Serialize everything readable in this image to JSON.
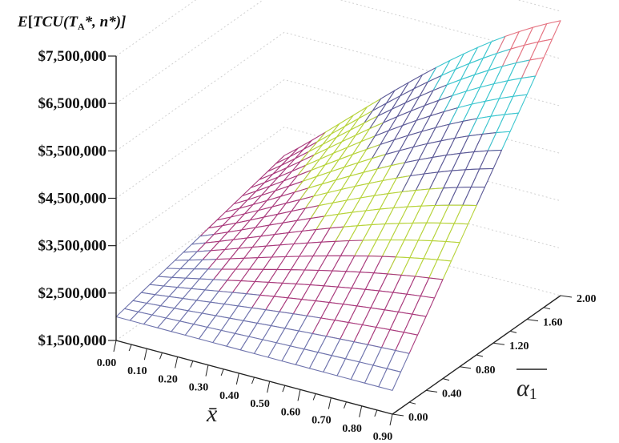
{
  "chart_data": {
    "type": "surface",
    "zlabel": "E[TCU(T_A*, n*)]",
    "zlabel_parts": [
      "E",
      "[",
      "TCU",
      "(",
      "T",
      "A",
      "*, ",
      "n",
      "*)]"
    ],
    "xlabel": "x̄",
    "ylabel": "α1",
    "ylabel_parts": [
      "α",
      "1"
    ],
    "z_ticks": [
      "$1,500,000",
      "$2,500,000",
      "$3,500,000",
      "$4,500,000",
      "$5,500,000",
      "$6,500,000",
      "$7,500,000"
    ],
    "x_ticks": [
      "0.00",
      "0.10",
      "0.20",
      "0.30",
      "0.40",
      "0.50",
      "0.60",
      "0.70",
      "0.80",
      "0.90"
    ],
    "y_ticks": [
      "0.00",
      "0.40",
      "0.80",
      "1.20",
      "1.60",
      "2.00"
    ],
    "xlim": [
      0,
      0.9
    ],
    "ylim": [
      0,
      2
    ],
    "zlim": [
      1500000,
      7500000
    ],
    "grid": true,
    "color_bands": [
      {
        "from": 1500000,
        "to": 2500000,
        "color": "#6f74ad"
      },
      {
        "from": 2500000,
        "to": 3500000,
        "color": "#a93a7c"
      },
      {
        "from": 3500000,
        "to": 4500000,
        "color": "#b7d33a"
      },
      {
        "from": 4500000,
        "to": 5500000,
        "color": "#5c5a97"
      },
      {
        "from": 5500000,
        "to": 6500000,
        "color": "#3cc6cf"
      },
      {
        "from": 6500000,
        "to": 7500000,
        "color": "#e57381"
      }
    ],
    "corner_values": {
      "x0_y0": 2000000,
      "x0.9_y0": 2000000,
      "x0_y2": 2900000,
      "x0.9_y2": 7300000
    },
    "x_samples": [
      0.0,
      0.045,
      0.09,
      0.135,
      0.18,
      0.225,
      0.27,
      0.315,
      0.36,
      0.405,
      0.45,
      0.495,
      0.54,
      0.585,
      0.63,
      0.675,
      0.72,
      0.765,
      0.81,
      0.855,
      0.9
    ],
    "y_samples": [
      0.0,
      0.1,
      0.2,
      0.3,
      0.4,
      0.5,
      0.6,
      0.7,
      0.8,
      0.9,
      1.0,
      1.1,
      1.2,
      1.3,
      1.4,
      1.5,
      1.6,
      1.7,
      1.8,
      1.9,
      2.0
    ]
  }
}
